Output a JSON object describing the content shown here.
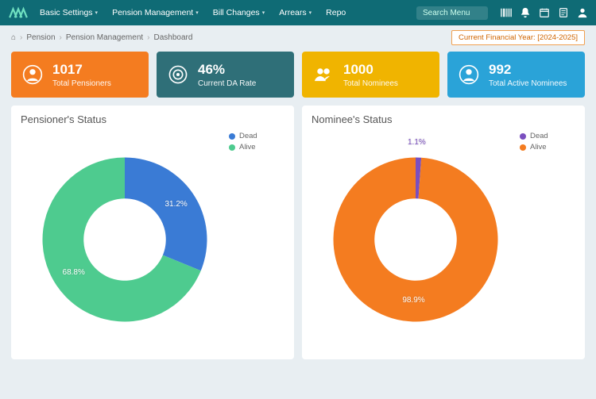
{
  "nav": {
    "items": [
      "Basic Settings",
      "Pension Management",
      "Bill Changes",
      "Arrears",
      "Repo"
    ],
    "search_placeholder": "Search Menu"
  },
  "breadcrumb": {
    "home_icon": "⌂",
    "items": [
      "Pension",
      "Pension Management",
      "Dashboard"
    ]
  },
  "financial_year": {
    "label": "Current Financial Year:",
    "value": "[2024-2025]"
  },
  "cards": [
    {
      "value": "1017",
      "label": "Total Pensioners",
      "color": "#f47c20",
      "icon": "user-circle"
    },
    {
      "value": "46%",
      "label": "Current DA Rate",
      "color": "#2f6f78",
      "icon": "target"
    },
    {
      "value": "1000",
      "label": "Total Nominees",
      "color": "#f0b400",
      "icon": "users"
    },
    {
      "value": "992",
      "label": "Total Active Nominees",
      "color": "#2aa3d8",
      "icon": "user-circle"
    }
  ],
  "charts": {
    "pensioner": {
      "title": "Pensioner's Status",
      "type": "donut",
      "inner_ratio": 0.5,
      "background": "#ffffff",
      "slices": [
        {
          "name": "Dead",
          "value": 31.2,
          "label": "31.2%",
          "color": "#3a7bd5"
        },
        {
          "name": "Alive",
          "value": 68.8,
          "label": "68.8%",
          "color": "#4ecb8f"
        }
      ],
      "legend_position": "right",
      "label_color": "#ffffff",
      "label_fontsize": 10
    },
    "nominee": {
      "title": "Nominee's Status",
      "type": "donut",
      "inner_ratio": 0.5,
      "background": "#ffffff",
      "slices": [
        {
          "name": "Dead",
          "value": 1.1,
          "label": "1.1%",
          "color": "#7a4fbf"
        },
        {
          "name": "Alive",
          "value": 98.9,
          "label": "98.9%",
          "color": "#f47c20"
        }
      ],
      "legend_position": "right",
      "label_color": "#ffffff",
      "label_fontsize": 10
    }
  }
}
